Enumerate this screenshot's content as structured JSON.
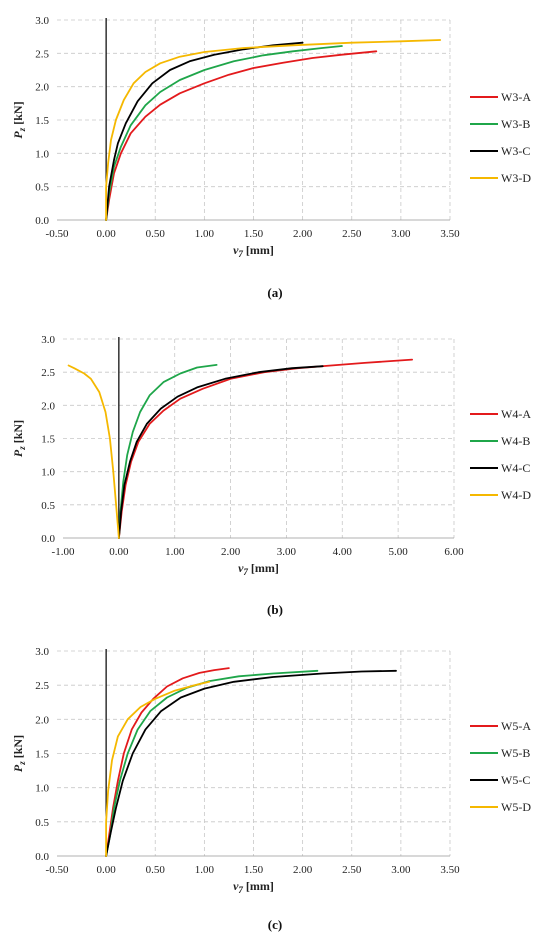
{
  "colors": {
    "A": "#e31a1c",
    "B": "#1fa64a",
    "C": "#000000",
    "D": "#f5b800"
  },
  "chart_data": [
    {
      "type": "line",
      "caption": "(a)",
      "xlabel_sym": "v",
      "xlabel_sub": "7",
      "xlabel_unit": " [mm]",
      "ylabel_sym": "P",
      "ylabel_sub": "z",
      "ylabel_unit": " [kN]",
      "xlim": [
        -0.5,
        3.5
      ],
      "ylim": [
        0,
        3.0
      ],
      "xticks": [
        "-0.50",
        "0.00",
        "0.50",
        "1.00",
        "1.50",
        "2.00",
        "2.50",
        "3.00",
        "3.50"
      ],
      "yticks": [
        "0.0",
        "0.5",
        "1.0",
        "1.5",
        "2.0",
        "2.5",
        "3.0"
      ],
      "series": [
        {
          "name": "W3-A",
          "color_key": "A",
          "points": [
            [
              0,
              0
            ],
            [
              0.03,
              0.3
            ],
            [
              0.08,
              0.7
            ],
            [
              0.15,
              1.0
            ],
            [
              0.25,
              1.3
            ],
            [
              0.4,
              1.55
            ],
            [
              0.55,
              1.73
            ],
            [
              0.75,
              1.9
            ],
            [
              1.0,
              2.05
            ],
            [
              1.25,
              2.18
            ],
            [
              1.5,
              2.28
            ],
            [
              1.8,
              2.36
            ],
            [
              2.1,
              2.43
            ],
            [
              2.4,
              2.48
            ],
            [
              2.75,
              2.53
            ]
          ]
        },
        {
          "name": "W3-B",
          "color_key": "B",
          "points": [
            [
              0,
              0
            ],
            [
              0.03,
              0.4
            ],
            [
              0.08,
              0.8
            ],
            [
              0.15,
              1.1
            ],
            [
              0.25,
              1.42
            ],
            [
              0.4,
              1.72
            ],
            [
              0.55,
              1.92
            ],
            [
              0.75,
              2.1
            ],
            [
              1.0,
              2.25
            ],
            [
              1.3,
              2.38
            ],
            [
              1.6,
              2.47
            ],
            [
              1.9,
              2.53
            ],
            [
              2.2,
              2.58
            ],
            [
              2.4,
              2.61
            ]
          ]
        },
        {
          "name": "W3-C",
          "color_key": "C",
          "points": [
            [
              0,
              0
            ],
            [
              0.03,
              0.5
            ],
            [
              0.08,
              0.9
            ],
            [
              0.12,
              1.15
            ],
            [
              0.2,
              1.45
            ],
            [
              0.32,
              1.78
            ],
            [
              0.47,
              2.05
            ],
            [
              0.65,
              2.25
            ],
            [
              0.85,
              2.38
            ],
            [
              1.1,
              2.48
            ],
            [
              1.4,
              2.56
            ],
            [
              1.7,
              2.62
            ],
            [
              2.0,
              2.66
            ]
          ]
        },
        {
          "name": "W3-D",
          "color_key": "D",
          "points": [
            [
              0,
              0
            ],
            [
              0.0,
              0.5
            ],
            [
              0.02,
              0.85
            ],
            [
              0.05,
              1.2
            ],
            [
              0.1,
              1.5
            ],
            [
              0.18,
              1.8
            ],
            [
              0.28,
              2.05
            ],
            [
              0.4,
              2.22
            ],
            [
              0.55,
              2.35
            ],
            [
              0.75,
              2.45
            ],
            [
              1.0,
              2.52
            ],
            [
              1.4,
              2.58
            ],
            [
              1.9,
              2.62
            ],
            [
              2.5,
              2.66
            ],
            [
              3.0,
              2.68
            ],
            [
              3.4,
              2.7
            ]
          ]
        }
      ]
    },
    {
      "type": "line",
      "caption": "(b)",
      "xlabel_sym": "v",
      "xlabel_sub": "7",
      "xlabel_unit": " [mm]",
      "ylabel_sym": "P",
      "ylabel_sub": "z",
      "ylabel_unit": " [kN]",
      "xlim": [
        -1.0,
        6.0
      ],
      "ylim": [
        0,
        3.0
      ],
      "xticks": [
        "-1.00",
        "0.00",
        "1.00",
        "2.00",
        "3.00",
        "4.00",
        "5.00",
        "6.00"
      ],
      "yticks": [
        "0.0",
        "0.5",
        "1.0",
        "1.5",
        "2.0",
        "2.5",
        "3.0"
      ],
      "series": [
        {
          "name": "W4-A",
          "color_key": "A",
          "points": [
            [
              0,
              0
            ],
            [
              0.05,
              0.4
            ],
            [
              0.12,
              0.8
            ],
            [
              0.22,
              1.15
            ],
            [
              0.35,
              1.45
            ],
            [
              0.55,
              1.72
            ],
            [
              0.8,
              1.92
            ],
            [
              1.1,
              2.1
            ],
            [
              1.5,
              2.25
            ],
            [
              2.0,
              2.4
            ],
            [
              2.6,
              2.5
            ],
            [
              3.2,
              2.56
            ],
            [
              3.8,
              2.6
            ],
            [
              4.4,
              2.64
            ],
            [
              5.25,
              2.69
            ]
          ]
        },
        {
          "name": "W4-B",
          "color_key": "B",
          "points": [
            [
              0,
              0
            ],
            [
              0.03,
              0.4
            ],
            [
              0.08,
              0.85
            ],
            [
              0.15,
              1.25
            ],
            [
              0.25,
              1.6
            ],
            [
              0.38,
              1.9
            ],
            [
              0.55,
              2.15
            ],
            [
              0.8,
              2.35
            ],
            [
              1.1,
              2.48
            ],
            [
              1.4,
              2.57
            ],
            [
              1.75,
              2.61
            ]
          ]
        },
        {
          "name": "W4-C",
          "color_key": "C",
          "points": [
            [
              0,
              0
            ],
            [
              0.04,
              0.4
            ],
            [
              0.1,
              0.8
            ],
            [
              0.2,
              1.15
            ],
            [
              0.32,
              1.45
            ],
            [
              0.5,
              1.72
            ],
            [
              0.75,
              1.95
            ],
            [
              1.05,
              2.13
            ],
            [
              1.4,
              2.27
            ],
            [
              1.9,
              2.4
            ],
            [
              2.5,
              2.5
            ],
            [
              3.1,
              2.56
            ],
            [
              3.65,
              2.59
            ]
          ]
        },
        {
          "name": "W4-D",
          "color_key": "D",
          "points": [
            [
              0,
              0
            ],
            [
              -0.05,
              0.5
            ],
            [
              -0.1,
              1.0
            ],
            [
              -0.16,
              1.5
            ],
            [
              -0.24,
              1.9
            ],
            [
              -0.35,
              2.2
            ],
            [
              -0.5,
              2.4
            ],
            [
              -0.62,
              2.48
            ],
            [
              -0.8,
              2.56
            ],
            [
              -0.9,
              2.6
            ]
          ]
        }
      ]
    },
    {
      "type": "line",
      "caption": "(c)",
      "xlabel_sym": "v",
      "xlabel_sub": "7",
      "xlabel_unit": " [mm]",
      "ylabel_sym": "P",
      "ylabel_sub": "z",
      "ylabel_unit": " [kN]",
      "xlim": [
        -0.5,
        3.5
      ],
      "ylim": [
        0,
        3.0
      ],
      "xticks": [
        "-0.50",
        "0.00",
        "0.50",
        "1.00",
        "1.50",
        "2.00",
        "2.50",
        "3.00",
        "3.50"
      ],
      "yticks": [
        "0.0",
        "0.5",
        "1.0",
        "1.5",
        "2.0",
        "2.5",
        "3.0"
      ],
      "series": [
        {
          "name": "W5-A",
          "color_key": "A",
          "points": [
            [
              0,
              0
            ],
            [
              0.03,
              0.3
            ],
            [
              0.07,
              0.7
            ],
            [
              0.12,
              1.1
            ],
            [
              0.18,
              1.5
            ],
            [
              0.26,
              1.85
            ],
            [
              0.36,
              2.1
            ],
            [
              0.48,
              2.3
            ],
            [
              0.62,
              2.48
            ],
            [
              0.78,
              2.6
            ],
            [
              0.95,
              2.68
            ],
            [
              1.1,
              2.72
            ],
            [
              1.25,
              2.75
            ]
          ]
        },
        {
          "name": "W5-B",
          "color_key": "B",
          "points": [
            [
              0,
              0
            ],
            [
              0.04,
              0.3
            ],
            [
              0.08,
              0.7
            ],
            [
              0.14,
              1.1
            ],
            [
              0.22,
              1.5
            ],
            [
              0.32,
              1.85
            ],
            [
              0.45,
              2.12
            ],
            [
              0.62,
              2.32
            ],
            [
              0.82,
              2.46
            ],
            [
              1.05,
              2.56
            ],
            [
              1.35,
              2.63
            ],
            [
              1.7,
              2.67
            ],
            [
              2.15,
              2.71
            ]
          ]
        },
        {
          "name": "W5-C",
          "color_key": "C",
          "points": [
            [
              0,
              0
            ],
            [
              0.04,
              0.3
            ],
            [
              0.1,
              0.7
            ],
            [
              0.17,
              1.1
            ],
            [
              0.27,
              1.5
            ],
            [
              0.4,
              1.85
            ],
            [
              0.56,
              2.12
            ],
            [
              0.76,
              2.32
            ],
            [
              1.0,
              2.45
            ],
            [
              1.3,
              2.55
            ],
            [
              1.7,
              2.62
            ],
            [
              2.2,
              2.67
            ],
            [
              2.6,
              2.7
            ],
            [
              2.95,
              2.71
            ]
          ]
        },
        {
          "name": "W5-D",
          "color_key": "D",
          "points": [
            [
              0,
              0
            ],
            [
              0.0,
              0.5
            ],
            [
              0.02,
              0.95
            ],
            [
              0.06,
              1.4
            ],
            [
              0.12,
              1.75
            ],
            [
              0.22,
              2.0
            ],
            [
              0.35,
              2.18
            ],
            [
              0.5,
              2.3
            ],
            [
              0.7,
              2.42
            ],
            [
              0.9,
              2.5
            ],
            [
              1.05,
              2.55
            ]
          ]
        }
      ]
    }
  ]
}
